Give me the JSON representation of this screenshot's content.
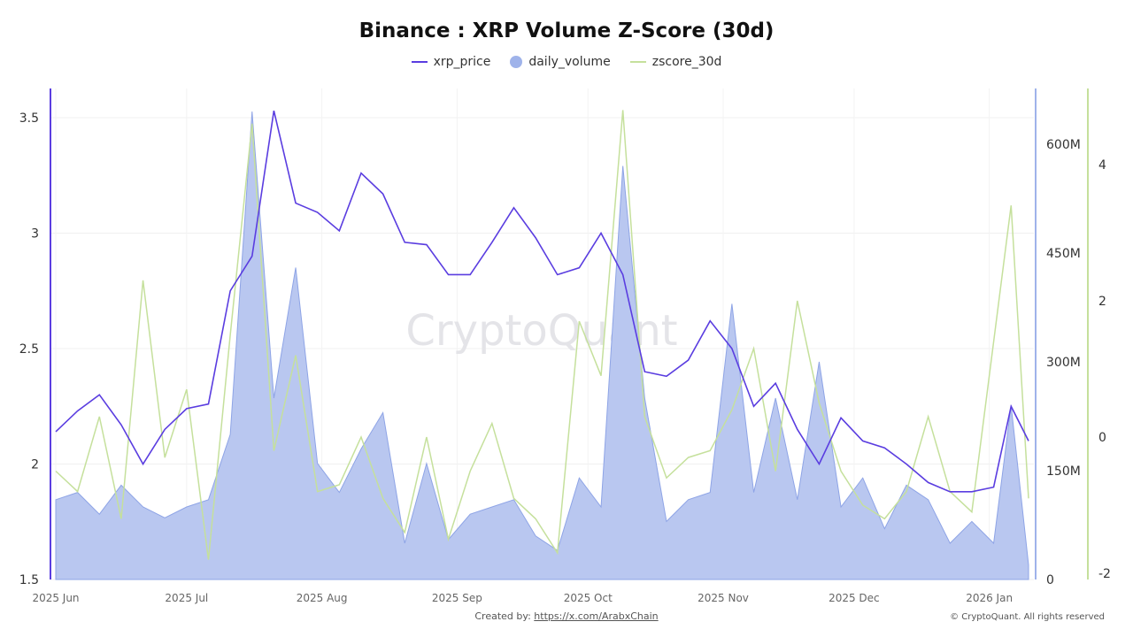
{
  "chart_data": {
    "type": "line",
    "title": "Binance : XRP Volume Z-Score (30d)",
    "watermark": "CryptoQuant",
    "x_ticks": [
      "2025 Jun",
      "2025 Jul",
      "2025 Aug",
      "2025 Sep",
      "2025 Oct",
      "2025 Nov",
      "2025 Dec",
      "2026 Jan"
    ],
    "x_tick_dates": [
      "2025-06-01",
      "2025-07-01",
      "2025-08-01",
      "2025-09-01",
      "2025-10-01",
      "2025-11-01",
      "2025-12-01",
      "2026-01-01"
    ],
    "xlim": [
      "2025-06-01",
      "2026-01-10"
    ],
    "y_left": {
      "ylim": [
        1.5,
        3.6
      ],
      "ticks": [
        "1.5",
        "2",
        "2.5",
        "3",
        "3.5"
      ],
      "tick_values": [
        1.5,
        2,
        2.5,
        3,
        3.5
      ]
    },
    "y_right_volume": {
      "ylim": [
        0,
        690000000
      ],
      "ticks": [
        "0",
        "150M",
        "300M",
        "450M",
        "600M"
      ],
      "tick_values": [
        0,
        150000000,
        300000000,
        450000000,
        600000000
      ]
    },
    "y_right_zscore": {
      "ylim": [
        -2,
        5.1
      ],
      "ticks": [
        "-2",
        "0",
        "2",
        "4"
      ],
      "tick_values": [
        -2,
        0,
        2,
        4
      ]
    },
    "grid": true,
    "legend_position": "top",
    "x": [
      "2025-06-01",
      "2025-06-06",
      "2025-06-11",
      "2025-06-16",
      "2025-06-21",
      "2025-06-26",
      "2025-07-01",
      "2025-07-06",
      "2025-07-11",
      "2025-07-16",
      "2025-07-21",
      "2025-07-26",
      "2025-07-31",
      "2025-08-05",
      "2025-08-10",
      "2025-08-15",
      "2025-08-20",
      "2025-08-25",
      "2025-08-30",
      "2025-09-04",
      "2025-09-09",
      "2025-09-14",
      "2025-09-19",
      "2025-09-24",
      "2025-09-29",
      "2025-10-04",
      "2025-10-09",
      "2025-10-14",
      "2025-10-19",
      "2025-10-24",
      "2025-10-29",
      "2025-11-03",
      "2025-11-08",
      "2025-11-13",
      "2025-11-18",
      "2025-11-23",
      "2025-11-28",
      "2025-12-03",
      "2025-12-08",
      "2025-12-13",
      "2025-12-18",
      "2025-12-23",
      "2025-12-28",
      "2026-01-02",
      "2026-01-06",
      "2026-01-10"
    ],
    "series": [
      {
        "name": "xrp_price",
        "axis": "left",
        "color": "#5a3de0",
        "kind": "line",
        "values": [
          2.14,
          2.23,
          2.3,
          2.17,
          2.0,
          2.15,
          2.24,
          2.26,
          2.75,
          2.9,
          3.53,
          3.13,
          3.09,
          3.01,
          3.26,
          3.17,
          2.96,
          2.95,
          2.82,
          2.82,
          2.96,
          3.11,
          2.98,
          2.82,
          2.85,
          3.0,
          2.82,
          2.4,
          2.38,
          2.45,
          2.62,
          2.5,
          2.25,
          2.35,
          2.15,
          2.0,
          2.2,
          2.1,
          2.07,
          2.0,
          1.92,
          1.88,
          1.88,
          1.9,
          2.25,
          2.1
        ]
      },
      {
        "name": "daily_volume",
        "axis": "right_volume",
        "color": "#9fb3ea",
        "kind": "area",
        "values": [
          110000000,
          120000000,
          90000000,
          130000000,
          100000000,
          85000000,
          100000000,
          110000000,
          200000000,
          645000000,
          250000000,
          430000000,
          160000000,
          120000000,
          180000000,
          230000000,
          50000000,
          160000000,
          55000000,
          90000000,
          100000000,
          110000000,
          60000000,
          40000000,
          140000000,
          100000000,
          570000000,
          250000000,
          80000000,
          110000000,
          120000000,
          380000000,
          120000000,
          250000000,
          110000000,
          300000000,
          100000000,
          140000000,
          70000000,
          130000000,
          110000000,
          50000000,
          80000000,
          50000000,
          240000000,
          20000000
        ]
      },
      {
        "name": "zscore_30d",
        "axis": "right_zscore",
        "color": "#c5e09c",
        "kind": "line",
        "values": [
          -0.5,
          -0.8,
          0.3,
          -1.2,
          2.3,
          -0.3,
          0.7,
          -1.8,
          1.5,
          4.6,
          -0.2,
          1.2,
          -0.8,
          -0.7,
          0.0,
          -0.9,
          -1.4,
          0.0,
          -1.5,
          -0.5,
          0.2,
          -0.9,
          -1.2,
          -1.7,
          1.7,
          0.9,
          4.8,
          0.3,
          -0.6,
          -0.3,
          -0.2,
          0.4,
          1.3,
          -0.5,
          2.0,
          0.5,
          -0.5,
          -1.0,
          -1.2,
          -0.8,
          0.3,
          -0.8,
          -1.1,
          1.4,
          3.4,
          -0.9
        ]
      }
    ]
  },
  "footer": {
    "created_by_label": "Created by:",
    "created_by_link": "https://x.com/ArabxChain",
    "copyright": "© CryptoQuant. All rights reserved"
  }
}
